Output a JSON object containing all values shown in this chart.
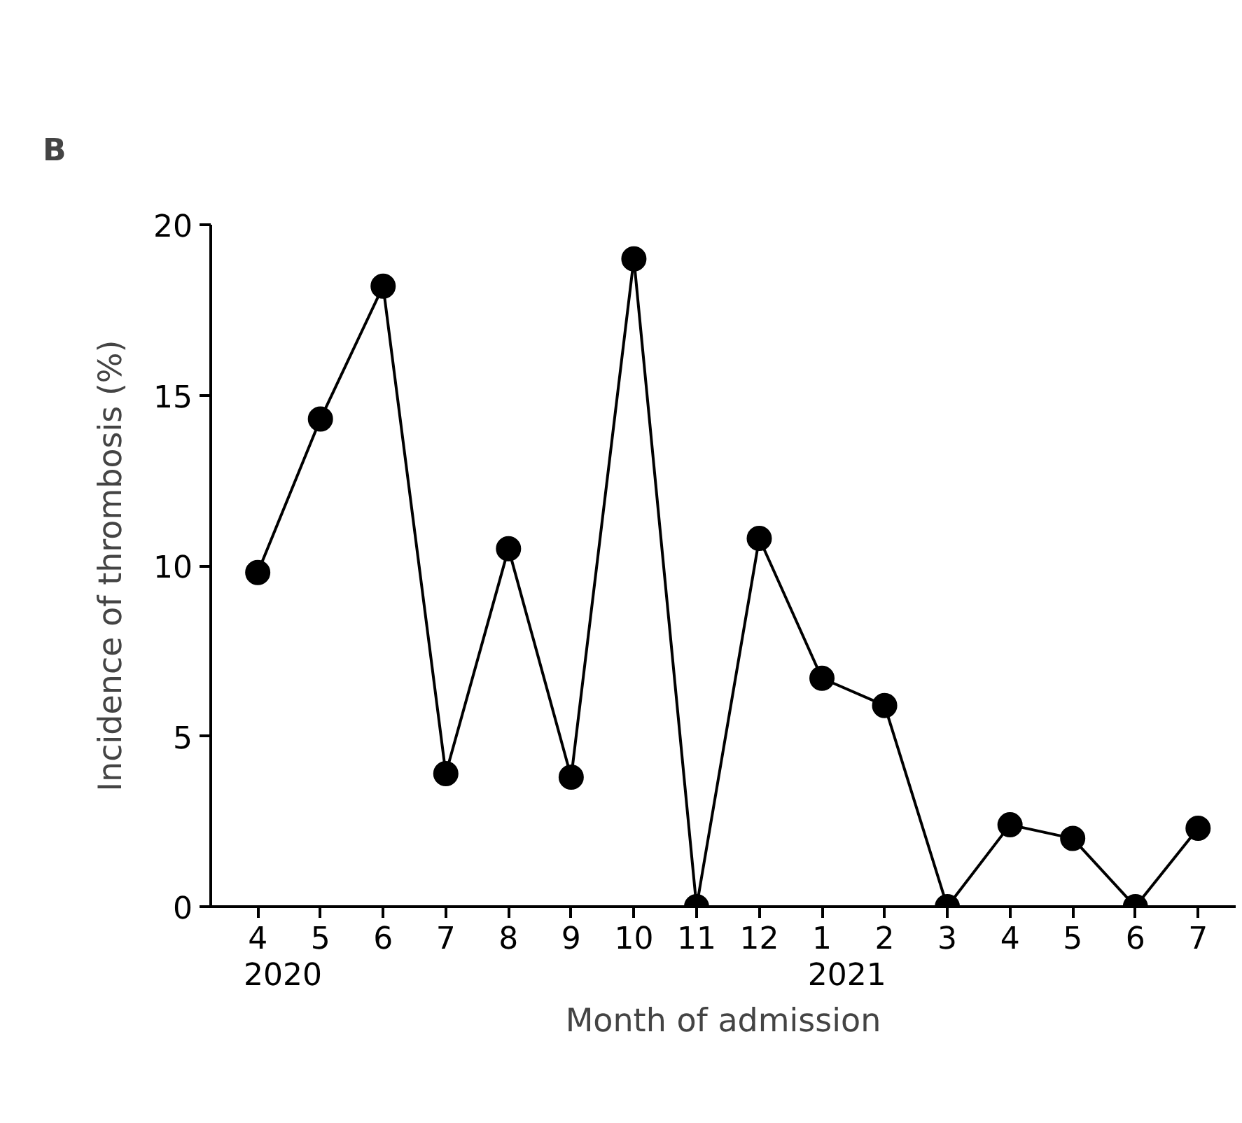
{
  "chart_data": {
    "type": "line",
    "title": "B",
    "xlabel": "Month of admission",
    "ylabel": "Incidence of thrombosis (%)",
    "categories": [
      "4",
      "5",
      "6",
      "7",
      "8",
      "9",
      "10",
      "11",
      "12",
      "1",
      "2",
      "3",
      "4",
      "5",
      "6",
      "7"
    ],
    "series": [
      {
        "color": "#000000",
        "values": [
          9.8,
          14.3,
          18.2,
          3.9,
          10.5,
          3.8,
          19.0,
          0,
          10.8,
          6.7,
          5.9,
          0,
          2.4,
          2.0,
          0,
          2.3
        ]
      }
    ],
    "ylim": [
      0,
      20
    ],
    "yticks": [
      0,
      5,
      10,
      15,
      20
    ],
    "marker": "circle",
    "line_style": "solid",
    "grid": false,
    "annotations": [
      "2020",
      "2021"
    ]
  }
}
